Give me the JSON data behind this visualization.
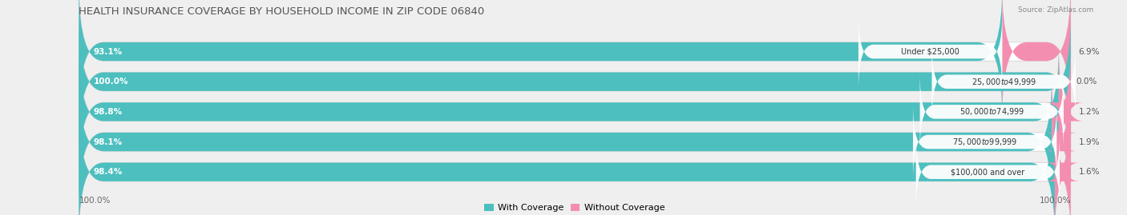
{
  "title": "HEALTH INSURANCE COVERAGE BY HOUSEHOLD INCOME IN ZIP CODE 06840",
  "source": "Source: ZipAtlas.com",
  "categories": [
    "Under $25,000",
    "$25,000 to $49,999",
    "$50,000 to $74,999",
    "$75,000 to $99,999",
    "$100,000 and over"
  ],
  "with_coverage": [
    93.1,
    100.0,
    98.8,
    98.1,
    98.4
  ],
  "without_coverage": [
    6.9,
    0.0,
    1.2,
    1.9,
    1.6
  ],
  "color_with": "#4DBFBF",
  "color_without": "#F48EB0",
  "bg_color": "#EFEFEF",
  "bar_bg_color": "#FFFFFF",
  "title_fontsize": 9.5,
  "label_fontsize": 7.5,
  "cat_fontsize": 7.0,
  "tick_fontsize": 7.5,
  "legend_fontsize": 8,
  "left_label_pct": [
    "93.1%",
    "100.0%",
    "98.8%",
    "98.1%",
    "98.4%"
  ],
  "right_label_pct": [
    "6.9%",
    "0.0%",
    "1.2%",
    "1.9%",
    "1.6%"
  ],
  "bottom_left_label": "100.0%",
  "bottom_right_label": "100.0%"
}
